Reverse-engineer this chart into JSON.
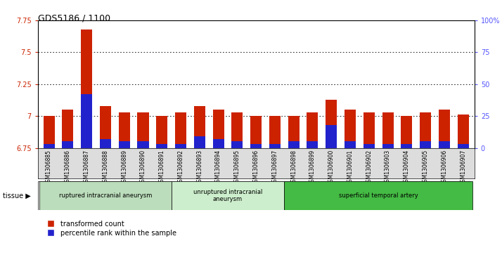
{
  "title": "GDS5186 / 1100",
  "samples": [
    "GSM1306885",
    "GSM1306886",
    "GSM1306887",
    "GSM1306888",
    "GSM1306889",
    "GSM1306890",
    "GSM1306891",
    "GSM1306892",
    "GSM1306893",
    "GSM1306894",
    "GSM1306895",
    "GSM1306896",
    "GSM1306897",
    "GSM1306898",
    "GSM1306899",
    "GSM1306900",
    "GSM1306901",
    "GSM1306902",
    "GSM1306903",
    "GSM1306904",
    "GSM1306905",
    "GSM1306906",
    "GSM1306907"
  ],
  "transformed_count": [
    7.0,
    7.05,
    7.68,
    7.08,
    7.03,
    7.03,
    7.0,
    7.03,
    7.08,
    7.05,
    7.03,
    7.0,
    7.0,
    7.0,
    7.03,
    7.13,
    7.05,
    7.03,
    7.03,
    7.0,
    7.03,
    7.05,
    7.01
  ],
  "percentile_rank": [
    3,
    5,
    42,
    7,
    5,
    5,
    3,
    3,
    9,
    7,
    5,
    3,
    3,
    5,
    5,
    18,
    5,
    3,
    3,
    3,
    5,
    5,
    3
  ],
  "ylim_left": [
    6.75,
    7.75
  ],
  "ylim_right": [
    0,
    100
  ],
  "yticks_left": [
    6.75,
    7.0,
    7.25,
    7.5,
    7.75
  ],
  "yticks_right": [
    0,
    25,
    50,
    75,
    100
  ],
  "ytick_labels_left": [
    "6.75",
    "7",
    "7.25",
    "7.5",
    "7.75"
  ],
  "ytick_labels_right": [
    "0",
    "25",
    "50",
    "75",
    "100%"
  ],
  "bar_color_red": "#cc2200",
  "bar_color_blue": "#2222cc",
  "base_value": 6.75,
  "groups": [
    {
      "label": "ruptured intracranial aneurysm",
      "start": 0,
      "end": 7,
      "color": "#bbddbb"
    },
    {
      "label": "unruptured intracranial\naneurysm",
      "start": 7,
      "end": 13,
      "color": "#cceecc"
    },
    {
      "label": "superficial temporal artery",
      "start": 13,
      "end": 23,
      "color": "#44bb44"
    }
  ],
  "tissue_label": "tissue ▶",
  "legend_red": "transformed count",
  "legend_blue": "percentile rank within the sample",
  "plot_bg_color": "#ffffff",
  "xtick_bg_color": "#dddddd",
  "title_fontsize": 9,
  "tick_fontsize": 7,
  "bar_width": 0.6
}
